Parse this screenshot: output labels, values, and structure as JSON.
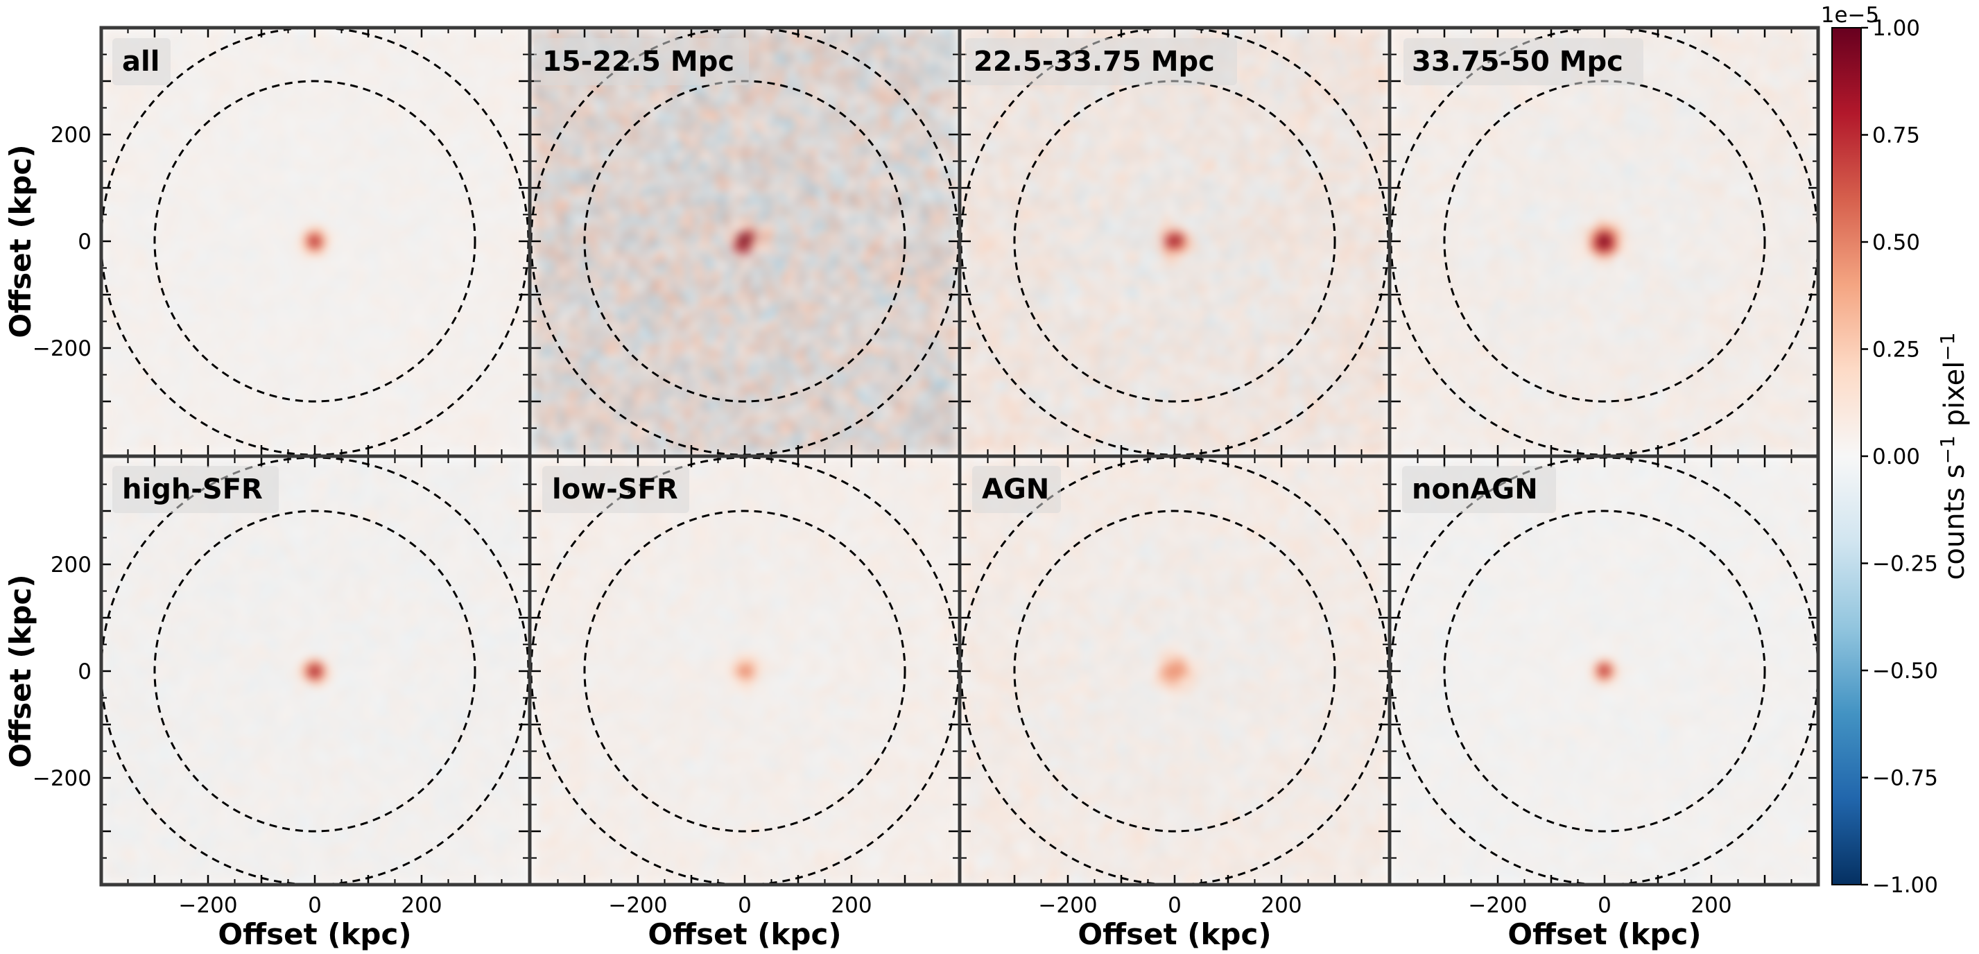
{
  "chart_data": {
    "type": "heatmap",
    "grid": {
      "rows": 2,
      "cols": 4
    },
    "panels": [
      {
        "label": "all",
        "peak": 0.85,
        "peak_radius_kpc": 13,
        "noise": 0.07,
        "bias": 0.02,
        "seed": 11
      },
      {
        "label": "15-22.5 Mpc",
        "peak": 1.0,
        "peak_radius_kpc": 15,
        "noise": 0.3,
        "bias": 0.0,
        "seed": 23
      },
      {
        "label": "22.5-33.75 Mpc",
        "peak": 1.0,
        "peak_radius_kpc": 14,
        "noise": 0.17,
        "bias": 0.04,
        "seed": 37
      },
      {
        "label": "33.75-50 Mpc",
        "peak": 1.0,
        "peak_radius_kpc": 18,
        "noise": 0.11,
        "bias": 0.03,
        "seed": 41
      },
      {
        "label": "high-SFR",
        "peak": 0.9,
        "peak_radius_kpc": 13,
        "noise": 0.08,
        "bias": 0.0,
        "seed": 53
      },
      {
        "label": "low-SFR",
        "peak": 0.48,
        "peak_radius_kpc": 16,
        "noise": 0.09,
        "bias": 0.03,
        "seed": 67
      },
      {
        "label": "AGN",
        "peak": 0.5,
        "peak_radius_kpc": 20,
        "noise": 0.12,
        "bias": 0.04,
        "seed": 79
      },
      {
        "label": "nonAGN",
        "peak": 0.85,
        "peak_radius_kpc": 12,
        "noise": 0.07,
        "bias": 0.0,
        "seed": 83
      }
    ],
    "x_extent": [
      -400,
      400
    ],
    "y_extent": [
      -400,
      400
    ],
    "xticks": [
      -200,
      0,
      200
    ],
    "yticks": [
      200,
      0,
      -200
    ],
    "xticklabels": [
      "−200",
      "0",
      "200"
    ],
    "yticklabels": [
      "200",
      "0",
      "−200"
    ],
    "xlabel": "Offset (kpc)",
    "ylabel": "Offset (kpc)",
    "circles_kpc": [
      300,
      400
    ],
    "colorbar": {
      "label": "counts s",
      "label_sup1": "−1",
      "label_mid": " pixel",
      "label_sup2": "−1",
      "offset_text": "1e−5",
      "vmin": -1.0,
      "vmax": 1.0,
      "colormap": "RdBu_r",
      "ticks": [
        1.0,
        0.75,
        0.5,
        0.25,
        0.0,
        -0.25,
        -0.5,
        -0.75,
        -1.0
      ],
      "ticklabels": [
        "1.00",
        "0.75",
        "0.50",
        "0.25",
        "0.00",
        "−0.25",
        "−0.50",
        "−0.75",
        "−1.00"
      ]
    }
  }
}
